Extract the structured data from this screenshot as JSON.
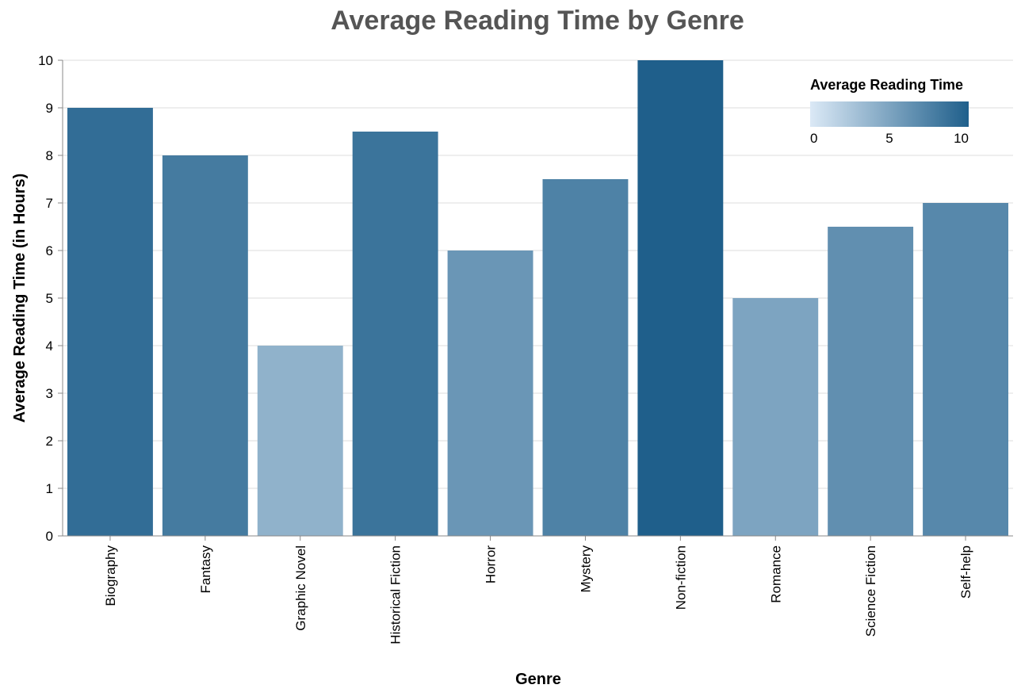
{
  "chart_data": {
    "type": "bar",
    "title": "Average Reading Time by Genre",
    "xlabel": "Genre",
    "ylabel": "Average Reading Time (in Hours)",
    "ylim": [
      0,
      10
    ],
    "yticks": [
      0,
      1,
      2,
      3,
      4,
      5,
      6,
      7,
      8,
      9,
      10
    ],
    "categories": [
      "Biography",
      "Fantasy",
      "Graphic Novel",
      "Historical Fiction",
      "Horror",
      "Mystery",
      "Non-fiction",
      "Romance",
      "Science Fiction",
      "Self-help"
    ],
    "values": [
      9,
      8,
      4,
      8.5,
      6,
      7.5,
      10,
      5,
      6.5,
      7
    ],
    "grid": true,
    "legend": {
      "title": "Average Reading Time",
      "placement": "top-right",
      "type": "gradient",
      "domain": [
        0,
        10
      ],
      "ticks": [
        0,
        5,
        10
      ],
      "color_low": "#dbe9f6",
      "color_high": "#1f5f8b"
    }
  }
}
